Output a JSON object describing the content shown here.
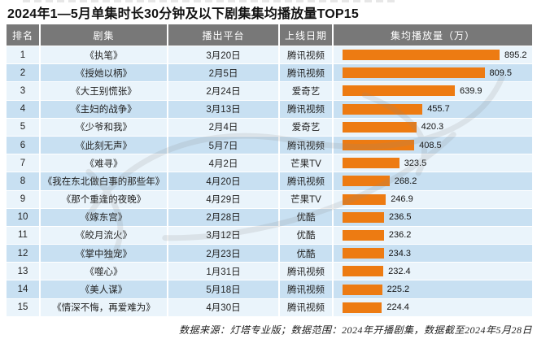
{
  "title": "2024年1—5月单集时长30分钟及以下剧集集均播放量TOP15",
  "footer": "数据来源：灯塔专业版；数据范围：2024年开播剧集，数据截至2024年5月28日",
  "colors": {
    "bar_orange": "#ED7B12",
    "header_bg": "#787878",
    "stripe_light": "#EAF4FB",
    "stripe_dark": "#C8E0F2"
  },
  "chart_data": {
    "type": "bar",
    "orientation": "horizontal",
    "title": "2024年1—5月单集时长30分钟及以下剧集集均播放量TOP15",
    "xlabel": "集均播放量（万）",
    "ylabel": "剧集",
    "xlim": [
      0,
      900
    ],
    "grid": false,
    "legend": "none",
    "categories": [
      "《执笔》",
      "《授她以柄》",
      "《大王别慌张》",
      "《主妇的战争》",
      "《少爷和我》",
      "《此刻无声》",
      "《难寻》",
      "《我在东北做白事的那些年》",
      "《那个重逢的夜晚》",
      "《嫁东宫》",
      "《皎月流火》",
      "《掌中独宠》",
      "《噬心》",
      "《美人谋》",
      "《情深不悔，再爱难为》"
    ],
    "values": [
      895.2,
      809.5,
      639.9,
      455.7,
      420.3,
      408.5,
      323.5,
      268.2,
      246.9,
      236.5,
      236.2,
      234.3,
      232.4,
      225.2,
      224.4
    ]
  },
  "table": {
    "columns": [
      "排名",
      "剧集",
      "播出平台",
      "上线日期",
      "集均播放量（万）"
    ],
    "rows": [
      {
        "rank": "1",
        "drama": "《执笔》",
        "date": "3月20日",
        "platform": "腾讯视频",
        "value": 895.2,
        "value_label": "895.2"
      },
      {
        "rank": "2",
        "drama": "《授她以柄》",
        "date": "2月5日",
        "platform": "腾讯视频",
        "value": 809.5,
        "value_label": "809.5"
      },
      {
        "rank": "3",
        "drama": "《大王别慌张》",
        "date": "2月24日",
        "platform": "爱奇艺",
        "value": 639.9,
        "value_label": "639.9"
      },
      {
        "rank": "4",
        "drama": "《主妇的战争》",
        "date": "3月13日",
        "platform": "腾讯视频",
        "value": 455.7,
        "value_label": "455.7"
      },
      {
        "rank": "5",
        "drama": "《少爷和我》",
        "date": "2月4日",
        "platform": "爱奇艺",
        "value": 420.3,
        "value_label": "420.3"
      },
      {
        "rank": "6",
        "drama": "《此刻无声》",
        "date": "5月7日",
        "platform": "腾讯视频",
        "value": 408.5,
        "value_label": "408.5"
      },
      {
        "rank": "7",
        "drama": "《难寻》",
        "date": "4月2日",
        "platform": "芒果TV",
        "value": 323.5,
        "value_label": "323.5"
      },
      {
        "rank": "8",
        "drama": "《我在东北做白事的那些年》",
        "date": "4月20日",
        "platform": "腾讯视频",
        "value": 268.2,
        "value_label": "268.2"
      },
      {
        "rank": "9",
        "drama": "《那个重逢的夜晚》",
        "date": "4月29日",
        "platform": "芒果TV",
        "value": 246.9,
        "value_label": "246.9"
      },
      {
        "rank": "10",
        "drama": "《嫁东宫》",
        "date": "2月28日",
        "platform": "优酷",
        "value": 236.5,
        "value_label": "236.5"
      },
      {
        "rank": "11",
        "drama": "《皎月流火》",
        "date": "3月12日",
        "platform": "优酷",
        "value": 236.2,
        "value_label": "236.2"
      },
      {
        "rank": "12",
        "drama": "《掌中独宠》",
        "date": "2月23日",
        "platform": "优酷",
        "value": 234.3,
        "value_label": "234.3"
      },
      {
        "rank": "13",
        "drama": "《噬心》",
        "date": "1月31日",
        "platform": "腾讯视频",
        "value": 232.4,
        "value_label": "232.4"
      },
      {
        "rank": "14",
        "drama": "《美人谋》",
        "date": "5月18日",
        "platform": "腾讯视频",
        "value": 225.2,
        "value_label": "225.2"
      },
      {
        "rank": "15",
        "drama": "《情深不悔，再爱难为》",
        "date": "4月30日",
        "platform": "腾讯视频",
        "value": 224.4,
        "value_label": "224.4"
      }
    ]
  }
}
